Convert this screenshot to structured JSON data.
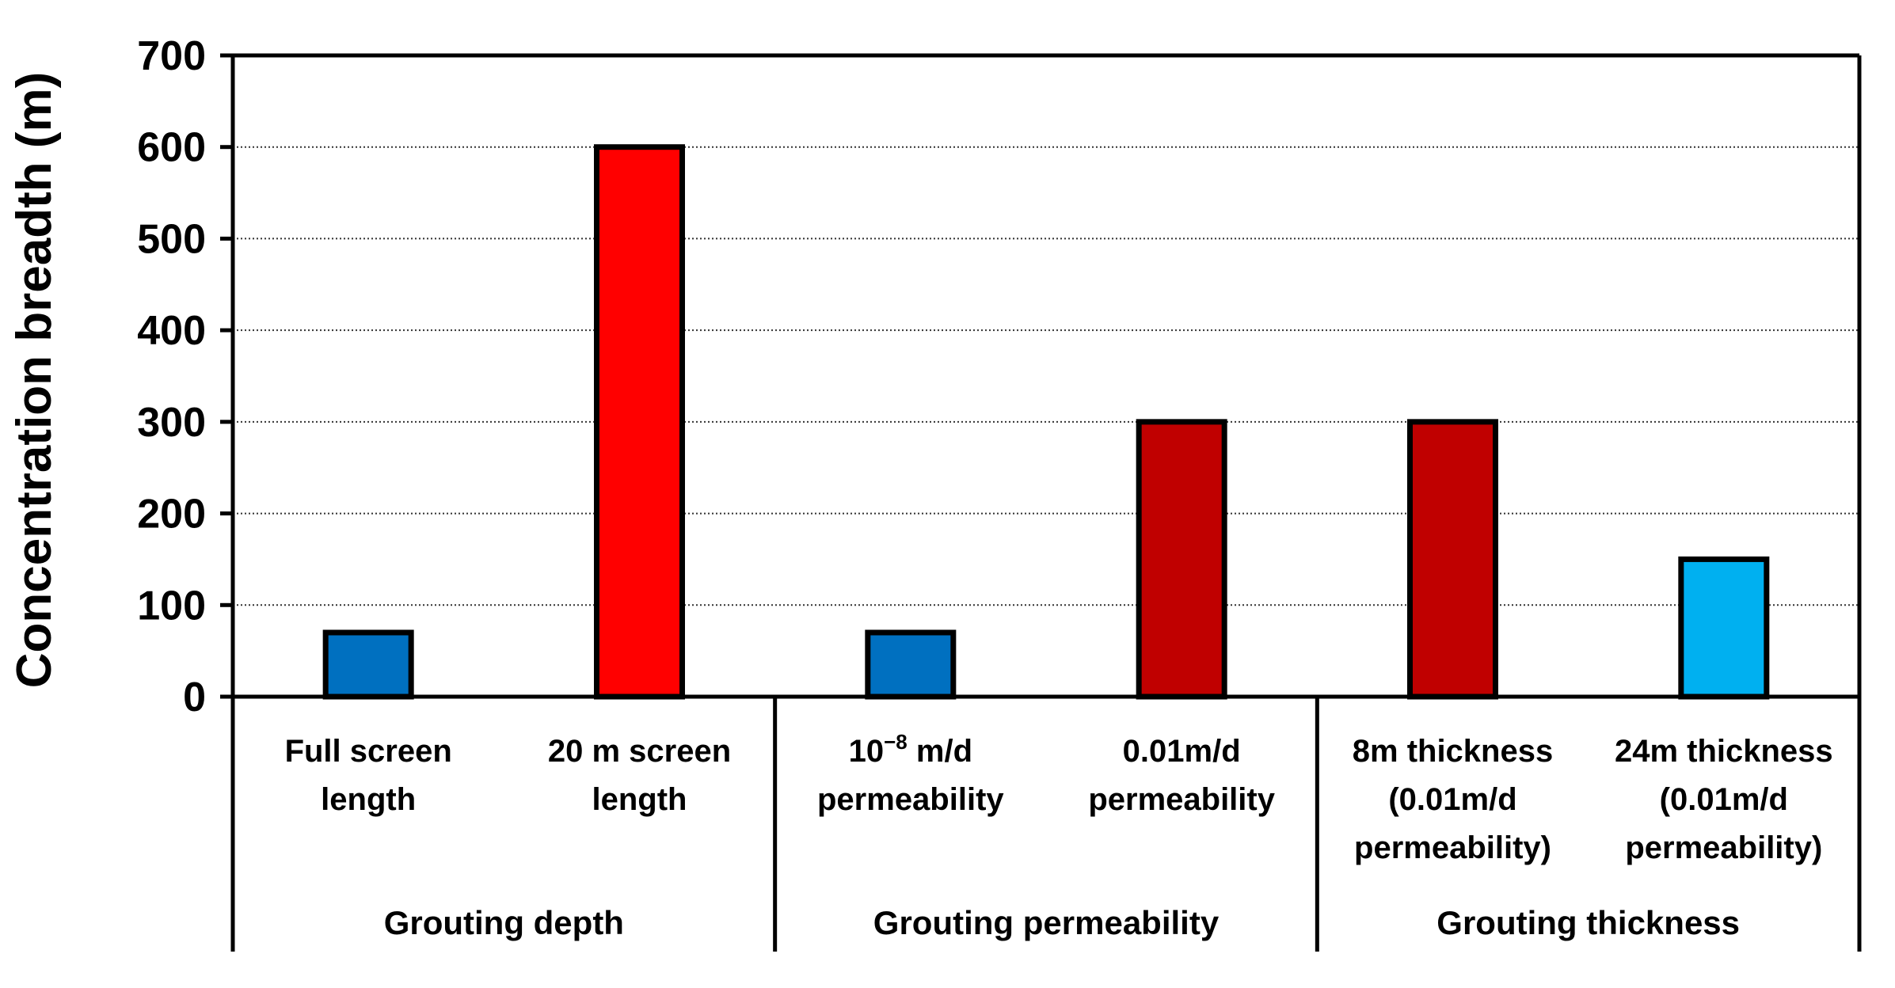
{
  "chart_data": {
    "type": "bar",
    "title": "",
    "xlabel": "",
    "ylabel": "Concentration breadth (m)",
    "ylim": [
      0,
      700
    ],
    "yticks": [
      0,
      100,
      200,
      300,
      400,
      500,
      600,
      700
    ],
    "grid": true,
    "categories": [
      {
        "lines": [
          "Full screen",
          "length"
        ],
        "value": 70,
        "color": "#0070C0"
      },
      {
        "lines": [
          "20 m screen",
          "length"
        ],
        "value": 600,
        "color": "#FF0000"
      },
      {
        "lines": [
          "10-8 m/d",
          "permeability"
        ],
        "base": "10",
        "sup": "−8",
        "after": " m/d",
        "value": 70,
        "color": "#0070C0"
      },
      {
        "lines": [
          "0.01m/d",
          "permeability"
        ],
        "value": 300,
        "color": "#C00000"
      },
      {
        "lines": [
          "8m thickness",
          "(0.01m/d",
          "permeability)"
        ],
        "value": 300,
        "color": "#C00000"
      },
      {
        "lines": [
          "24m thickness",
          "(0.01m/d",
          "permeability)"
        ],
        "value": 150,
        "color": "#00B0F0"
      }
    ],
    "groups": [
      {
        "label": "Grouting depth",
        "members": [
          0,
          1
        ]
      },
      {
        "label": "Grouting permeability",
        "members": [
          2,
          3
        ]
      },
      {
        "label": "Grouting thickness",
        "members": [
          4,
          5
        ]
      }
    ]
  }
}
